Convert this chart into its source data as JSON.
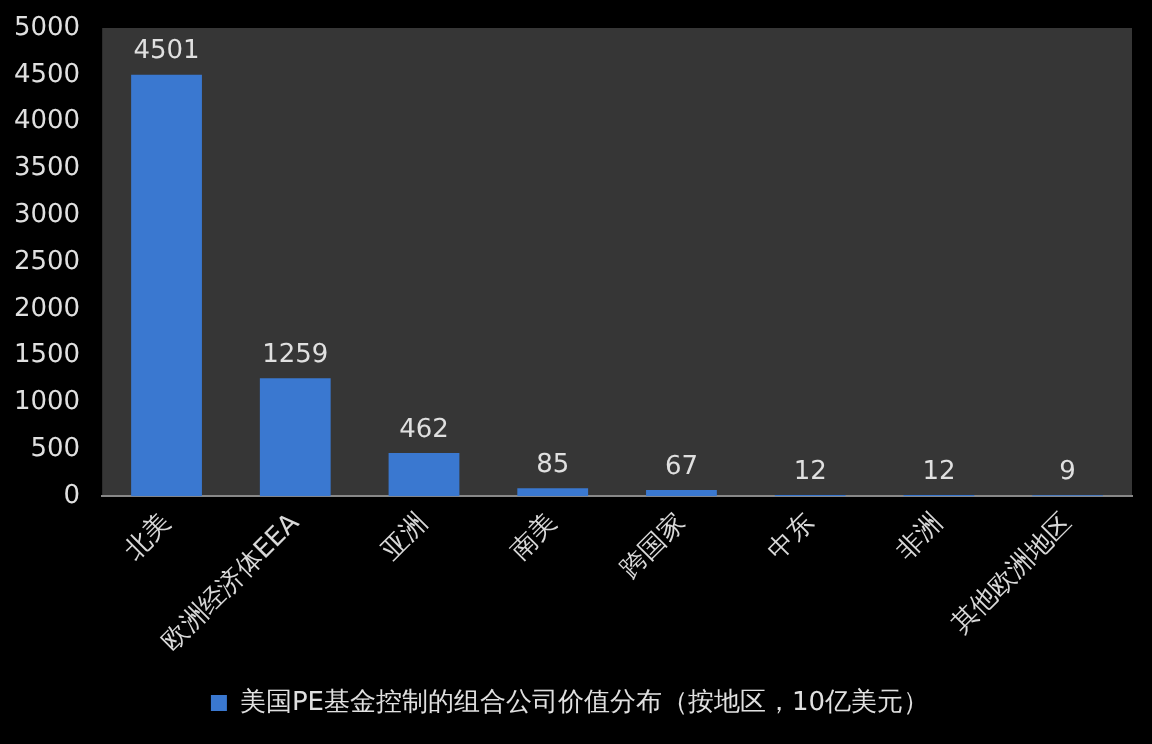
{
  "chart_data": {
    "type": "bar",
    "categories": [
      "北美",
      "欧洲经济体EEA",
      "亚洲",
      "南美",
      "跨国家",
      "中东",
      "非洲",
      "其他欧洲地区"
    ],
    "series": [
      {
        "name": "美国PE基金控制的组合公司价值分布（按地区，10亿美元）",
        "color": "#3a78d0",
        "values": [
          4501,
          1259,
          462,
          85,
          67,
          12,
          12,
          9
        ]
      }
    ],
    "ylim": [
      0,
      5000
    ],
    "yticks": [
      0,
      500,
      1000,
      1500,
      2000,
      2500,
      3000,
      3500,
      4000,
      4500,
      5000
    ],
    "grid": false,
    "legend": "bottom",
    "data_labels": true
  }
}
